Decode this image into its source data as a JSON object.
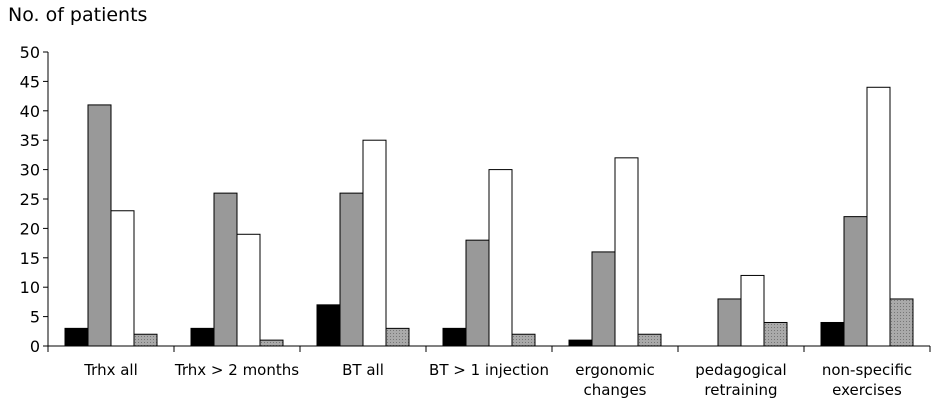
{
  "chart_data": {
    "type": "bar",
    "ylabel": "No. of patients",
    "ylim": [
      0,
      50
    ],
    "yticks": [
      0,
      5,
      10,
      15,
      20,
      25,
      30,
      35,
      40,
      45,
      50
    ],
    "categories": [
      [
        "Trhx all"
      ],
      [
        "Trhx > 2 months"
      ],
      [
        "BT all"
      ],
      [
        "BT > 1 injection"
      ],
      [
        "ergonomic",
        "changes"
      ],
      [
        "pedagogical",
        "retraining"
      ],
      [
        "non-specific",
        "exercises"
      ]
    ],
    "series": [
      {
        "color": "#000000",
        "values": [
          3,
          3,
          7,
          3,
          1,
          0,
          4
        ]
      },
      {
        "color": "#999999",
        "values": [
          41,
          26,
          26,
          18,
          16,
          8,
          22
        ]
      },
      {
        "color": "#ffffff",
        "values": [
          23,
          19,
          35,
          30,
          32,
          12,
          44
        ]
      },
      {
        "color": "#aaaaaa",
        "values": [
          2,
          1,
          3,
          2,
          2,
          4,
          8
        ]
      }
    ],
    "grid": false,
    "legend": "none"
  }
}
